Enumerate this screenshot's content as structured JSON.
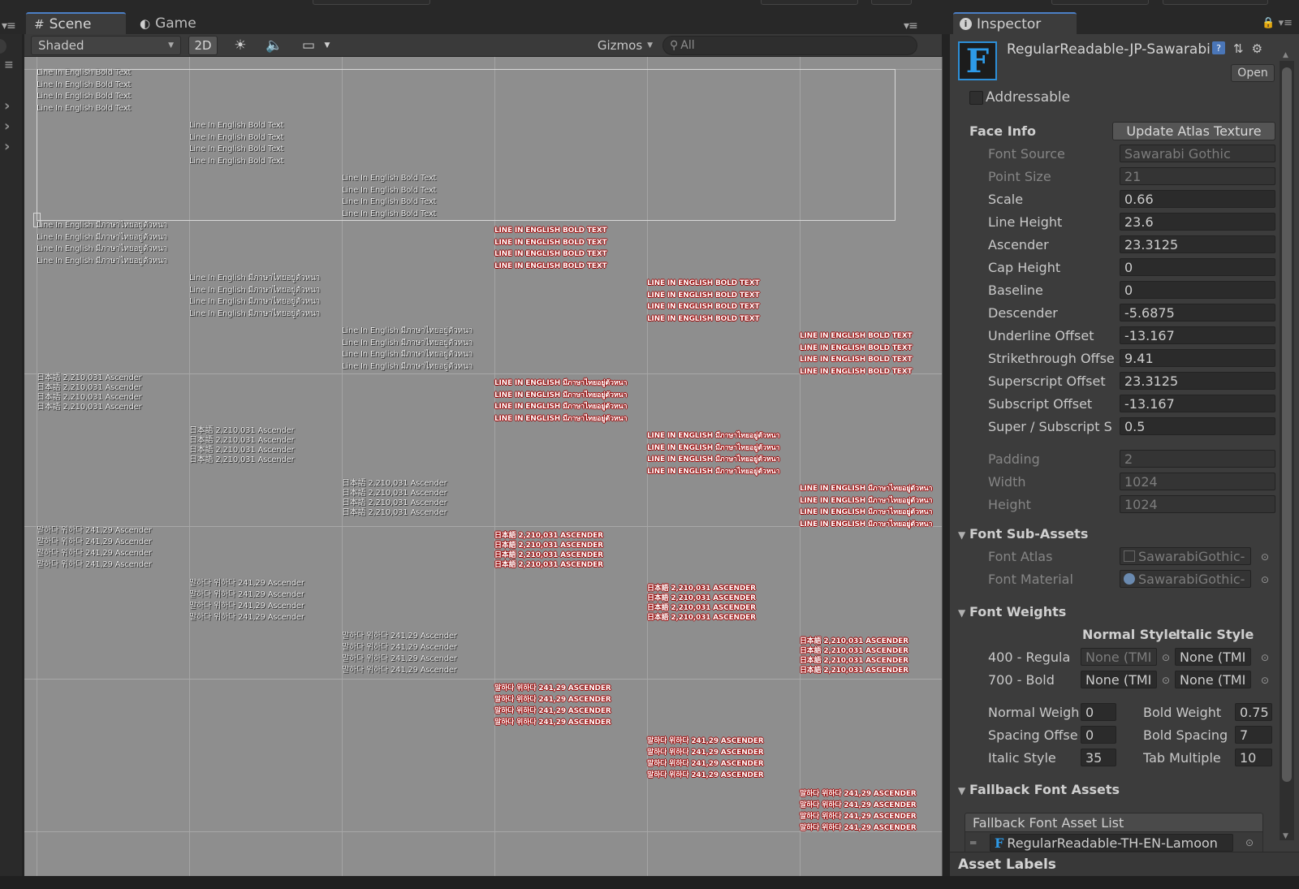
{
  "tabs": {
    "scene": "Scene",
    "game": "Game",
    "inspector": "Inspector"
  },
  "scene_toolbar": {
    "shading_mode": "Shaded",
    "mode_2d": "2D",
    "gizmos": "Gizmos",
    "search_placeholder": "All",
    "icons": [
      "light-icon",
      "audio-icon",
      "effects-icon"
    ]
  },
  "scene": {
    "columns": [
      {
        "style": "white",
        "blocks": [
          {
            "lines": [
              "Line In English Bold Text",
              "Line In English Bold Text",
              "Line In English Bold Text",
              "Line In English Bold Text"
            ]
          },
          {
            "lines": [
              "Line In English มีภาษาไทยอยู่ตัวหนา",
              "Line In English มีภาษาไทยอยู่ตัวหนา",
              "Line In English มีภาษาไทยอยู่ตัวหนา",
              "Line In English มีภาษาไทยอยู่ตัวหนา"
            ]
          },
          {
            "lines": [
              "日本語 2,210,031 Ascender",
              "日本語 2,210,031 Ascender",
              "日本語 2,210,031 Ascender",
              "日本語 2,210,031 Ascender"
            ]
          },
          {
            "lines": [
              "말하다 위하다 241,29 Ascender",
              "말하다 위하다 241,29 Ascender",
              "말하다 위하다 241,29 Ascender",
              "말하다 위하다 241,29 Ascender"
            ]
          }
        ]
      },
      {
        "style": "white",
        "blocks": [
          {
            "lines": [
              "Line In English Bold Text",
              "Line In English Bold Text",
              "Line In English Bold Text",
              "Line In English Bold Text"
            ]
          },
          {
            "lines": [
              "Line In English มีภาษาไทยอยู่ตัวหนา",
              "Line In English มีภาษาไทยอยู่ตัวหนา",
              "Line In English มีภาษาไทยอยู่ตัวหนา",
              "Line In English มีภาษาไทยอยู่ตัวหนา"
            ]
          },
          {
            "lines": [
              "日本語 2,210,031 Ascender",
              "日本語 2,210,031 Ascender",
              "日本語 2,210,031 Ascender",
              "日本語 2,210,031 Ascender"
            ]
          },
          {
            "lines": [
              "말하다 위하다 241,29 Ascender",
              "말하다 위하다 241,29 Ascender",
              "말하다 위하다 241,29 Ascender",
              "말하다 위하다 241,29 Ascender"
            ]
          }
        ]
      },
      {
        "style": "white",
        "blocks": [
          {
            "lines": [
              "Line In English Bold Text",
              "Line In English Bold Text",
              "Line In English Bold Text",
              "Line In English Bold Text"
            ]
          },
          {
            "lines": [
              "Line In English มีภาษาไทยอยู่ตัวหนา",
              "Line In English มีภาษาไทยอยู่ตัวหนา",
              "Line In English มีภาษาไทยอยู่ตัวหนา",
              "Line In English มีภาษาไทยอยู่ตัวหนา"
            ]
          },
          {
            "lines": [
              "日本語 2,210,031 Ascender",
              "日本語 2,210,031 Ascender",
              "日本語 2,210,031 Ascender",
              "日本語 2,210,031 Ascender"
            ]
          },
          {
            "lines": [
              "말하다 위하다 241,29 Ascender",
              "말하다 위하다 241,29 Ascender",
              "말하다 위하다 241,29 Ascender",
              "말하다 위하다 241,29 Ascender"
            ]
          }
        ]
      },
      {
        "style": "red",
        "blocks": [
          {
            "lines": [
              "LINE IN ENGLISH BOLD TEXT",
              "LINE IN ENGLISH BOLD TEXT",
              "LINE IN ENGLISH BOLD TEXT",
              "LINE IN ENGLISH BOLD TEXT"
            ]
          },
          {
            "lines": [
              "LINE IN ENGLISH มีภาษาไทยอยู่ตัวหนา",
              "LINE IN ENGLISH มีภาษาไทยอยู่ตัวหนา",
              "LINE IN ENGLISH มีภาษาไทยอยู่ตัวหนา",
              "LINE IN ENGLISH มีภาษาไทยอยู่ตัวหนา"
            ]
          },
          {
            "lines": [
              "日本語 2,210,031 ASCENDER",
              "日本語 2,210,031 ASCENDER",
              "日本語 2,210,031 ASCENDER",
              "日本語 2,210,031 ASCENDER"
            ]
          },
          {
            "lines": [
              "말하다 위하다 241,29 ASCENDER",
              "말하다 위하다 241,29 ASCENDER",
              "말하다 위하다 241,29 ASCENDER",
              "말하다 위하다 241,29 ASCENDER"
            ]
          }
        ]
      },
      {
        "style": "red",
        "blocks": [
          {
            "lines": [
              "LINE IN ENGLISH BOLD TEXT",
              "LINE IN ENGLISH BOLD TEXT",
              "LINE IN ENGLISH BOLD TEXT",
              "LINE IN ENGLISH BOLD TEXT"
            ]
          },
          {
            "lines": [
              "LINE IN ENGLISH มีภาษาไทยอยู่ตัวหนา",
              "LINE IN ENGLISH มีภาษาไทยอยู่ตัวหนา",
              "LINE IN ENGLISH มีภาษาไทยอยู่ตัวหนา",
              "LINE IN ENGLISH มีภาษาไทยอยู่ตัวหนา"
            ]
          },
          {
            "lines": [
              "日本語 2,210,031 ASCENDER",
              "日本語 2,210,031 ASCENDER",
              "日本語 2,210,031 ASCENDER",
              "日本語 2,210,031 ASCENDER"
            ]
          },
          {
            "lines": [
              "말하다 위하다 241,29 ASCENDER",
              "말하다 위하다 241,29 ASCENDER",
              "말하다 위하다 241,29 ASCENDER",
              "말하다 위하다 241,29 ASCENDER"
            ]
          }
        ]
      },
      {
        "style": "red",
        "blocks": [
          {
            "lines": [
              "LINE IN ENGLISH BOLD TEXT",
              "LINE IN ENGLISH BOLD TEXT",
              "LINE IN ENGLISH BOLD TEXT",
              "LINE IN ENGLISH BOLD TEXT"
            ]
          },
          {
            "lines": [
              "LINE IN ENGLISH มีภาษาไทยอยู่ตัวหนา",
              "LINE IN ENGLISH มีภาษาไทยอยู่ตัวหนา",
              "LINE IN ENGLISH มีภาษาไทยอยู่ตัวหนา",
              "LINE IN ENGLISH มีภาษาไทยอยู่ตัวหนา"
            ]
          },
          {
            "lines": [
              "日本語 2,210,031 ASCENDER",
              "日本語 2,210,031 ASCENDER",
              "日本語 2,210,031 ASCENDER",
              "日本語 2,210,031 ASCENDER"
            ]
          },
          {
            "lines": [
              "말하다 위하다 241,29 ASCENDER",
              "말하다 위하다 241,29 ASCENDER",
              "말하다 위하다 241,29 ASCENDER",
              "말하다 위하다 241,29 ASCENDER"
            ]
          }
        ]
      }
    ]
  },
  "inspector": {
    "asset_name": "RegularReadable-JP-Sawarabi",
    "asset_icon_letter": "F",
    "open_button": "Open",
    "addressable_label": "Addressable",
    "addressable_checked": false,
    "face_info": {
      "title": "Face Info",
      "update_button": "Update Atlas Texture",
      "font_source": {
        "label": "Font Source",
        "value": "Sawarabi Gothic"
      },
      "point_size": {
        "label": "Point Size",
        "value": "21"
      },
      "scale": {
        "label": "Scale",
        "value": "0.66"
      },
      "line_height": {
        "label": "Line Height",
        "value": "23.6"
      },
      "ascender": {
        "label": "Ascender",
        "value": "23.3125"
      },
      "cap_height": {
        "label": "Cap Height",
        "value": "0"
      },
      "baseline": {
        "label": "Baseline",
        "value": "0"
      },
      "descender": {
        "label": "Descender",
        "value": "-5.6875"
      },
      "underline_offset": {
        "label": "Underline Offset",
        "value": "-13.167"
      },
      "strikethrough_offset": {
        "label": "Strikethrough Offse",
        "value": "9.41"
      },
      "superscript_offset": {
        "label": "Superscript Offset",
        "value": "23.3125"
      },
      "subscript_offset": {
        "label": "Subscript Offset",
        "value": "-13.167"
      },
      "super_subscript_size": {
        "label": "Super / Subscript S",
        "value": "0.5"
      },
      "padding": {
        "label": "Padding",
        "value": "2"
      },
      "width": {
        "label": "Width",
        "value": "1024"
      },
      "height": {
        "label": "Height",
        "value": "1024"
      }
    },
    "font_sub_assets": {
      "title": "Font Sub-Assets",
      "font_atlas": {
        "label": "Font Atlas",
        "value": "SawarabiGothic-"
      },
      "font_material": {
        "label": "Font Material",
        "value": "SawarabiGothic-"
      }
    },
    "font_weights": {
      "title": "Font Weights",
      "normal_style": "Normal Style",
      "italic_style": "Italic Style",
      "rows": [
        {
          "label": "400 - Regula",
          "normal": "None (TMI",
          "italic": "None (TMI"
        },
        {
          "label": "700 - Bold",
          "normal": "None (TMI",
          "italic": "None (TMI"
        }
      ],
      "normal_weight": {
        "label": "Normal Weigh",
        "value": "0"
      },
      "bold_weight": {
        "label": "Bold Weight",
        "value": "0.75"
      },
      "spacing_offset": {
        "label": "Spacing Offse",
        "value": "0"
      },
      "bold_spacing": {
        "label": "Bold Spacing",
        "value": "7"
      },
      "italic_style_val": {
        "label": "Italic Style",
        "value": "35"
      },
      "tab_multiple": {
        "label": "Tab Multiple",
        "value": "10"
      }
    },
    "fallback": {
      "title": "Fallback Font Assets",
      "list_title": "Fallback Font Asset List",
      "item0": "RegularReadable-TH-EN-Lamoon"
    },
    "asset_labels": "Asset Labels"
  },
  "colors": {
    "accent_blue": "#4c7fc6",
    "scene_bg": "#8e8e8e",
    "panel_bg": "#3c3c3c",
    "red_text_outline": "#a00000"
  }
}
